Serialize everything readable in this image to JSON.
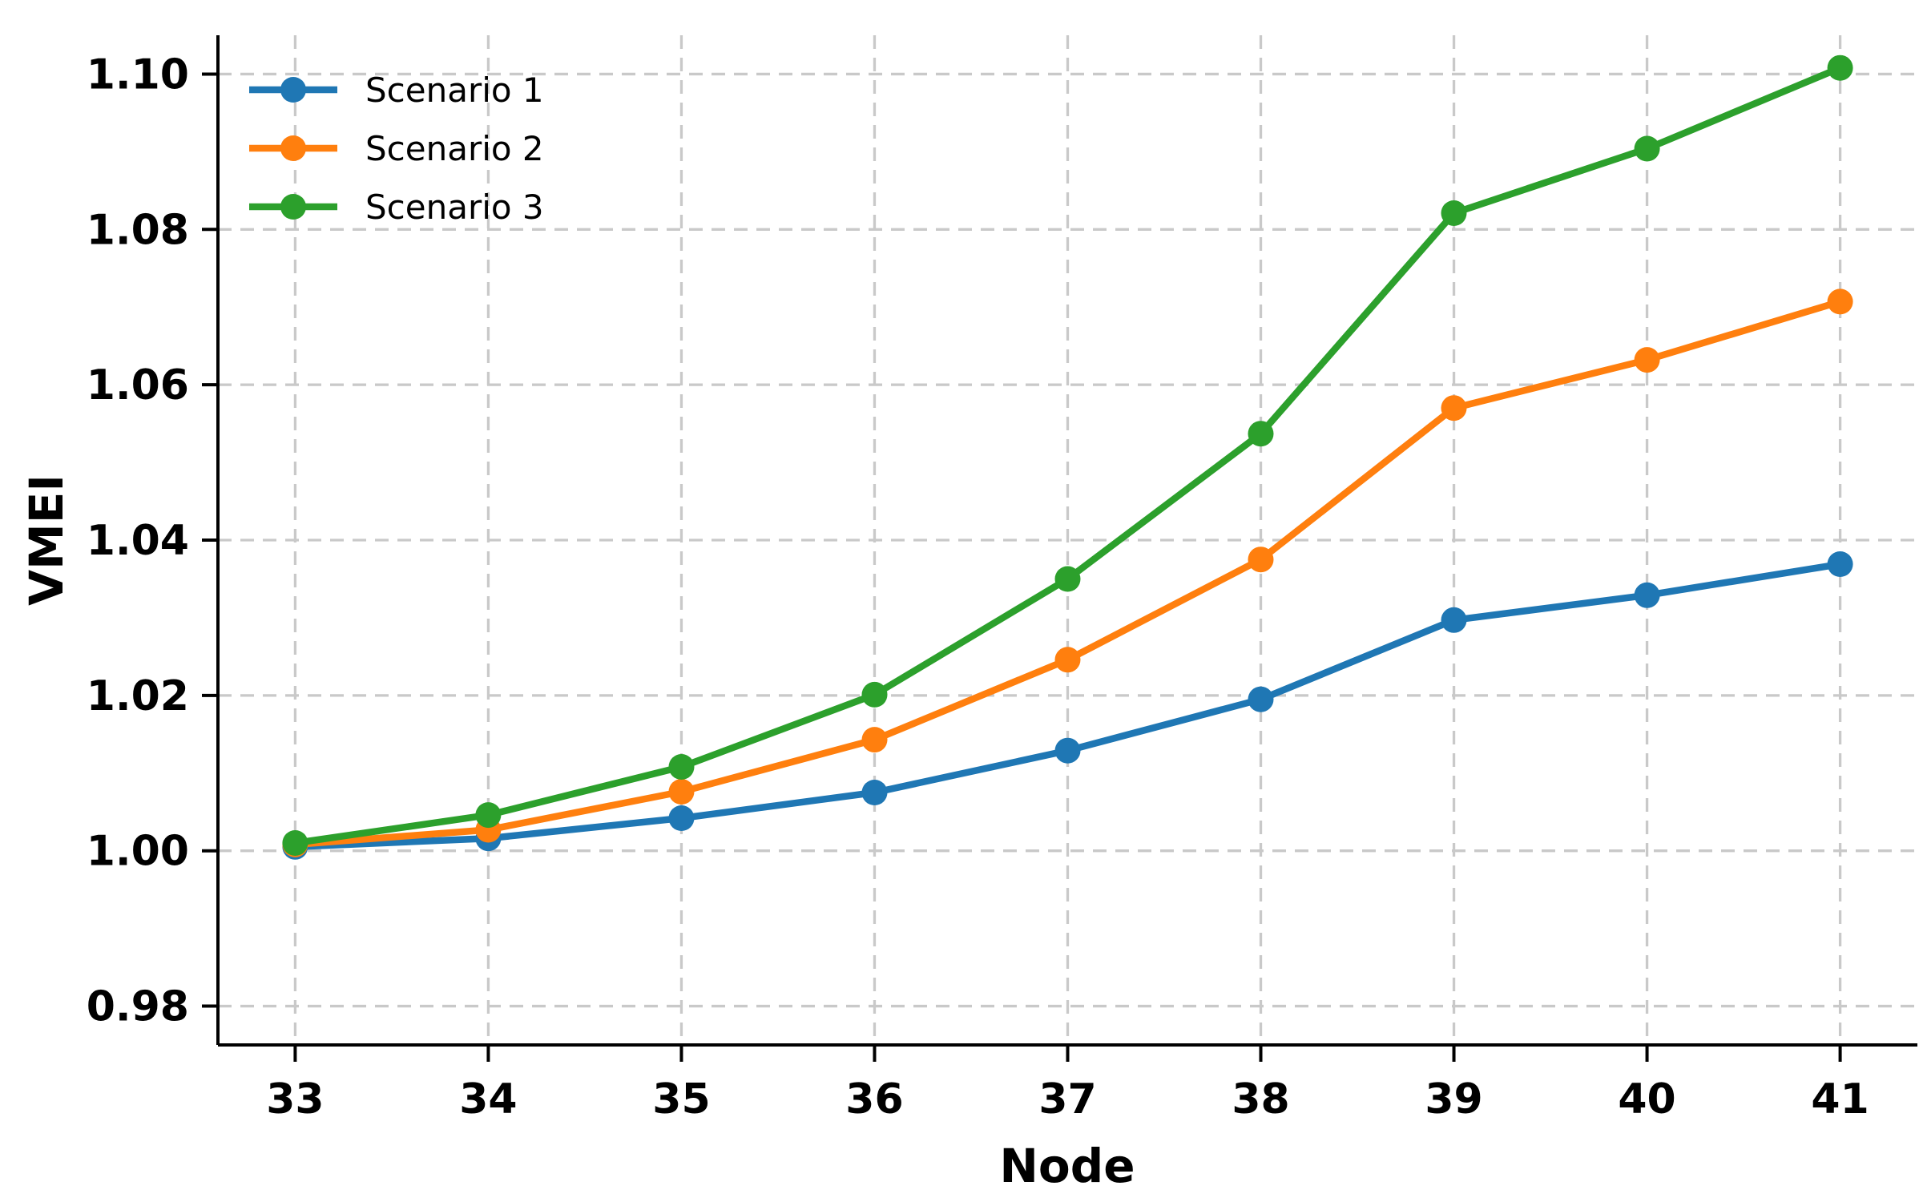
{
  "chart_data": {
    "type": "line",
    "title": "",
    "xlabel": "Node",
    "ylabel": "VMEI",
    "x": [
      33,
      34,
      35,
      36,
      37,
      38,
      39,
      40,
      41
    ],
    "series": [
      {
        "name": "Scenario 1",
        "color": "#1f77b4",
        "values": [
          1.0005,
          1.0016,
          1.0042,
          1.0075,
          1.0129,
          1.0195,
          1.0297,
          1.0329,
          1.0369
        ]
      },
      {
        "name": "Scenario 2",
        "color": "#ff7f0e",
        "values": [
          1.0008,
          1.0027,
          1.0076,
          1.0143,
          1.0246,
          1.0375,
          1.057,
          1.0632,
          1.0707
        ]
      },
      {
        "name": "Scenario 3",
        "color": "#2ca02c",
        "values": [
          1.001,
          1.0046,
          1.0108,
          1.0201,
          1.035,
          1.0537,
          1.0821,
          1.0904,
          1.1008
        ]
      }
    ],
    "xticks": [
      33,
      34,
      35,
      36,
      37,
      38,
      39,
      40,
      41
    ],
    "yticks": [
      0.98,
      1.0,
      1.02,
      1.04,
      1.06,
      1.08,
      1.1
    ],
    "xlim": [
      32.6,
      41.4
    ],
    "ylim": [
      0.975,
      1.105
    ],
    "grid": true,
    "grid_style": "dashed",
    "grid_color": "#c9c9c9",
    "axis_color": "#000000",
    "background_color": "#ffffff",
    "legend_position": "upper-left",
    "legend_frame": false,
    "marker": "circle"
  }
}
